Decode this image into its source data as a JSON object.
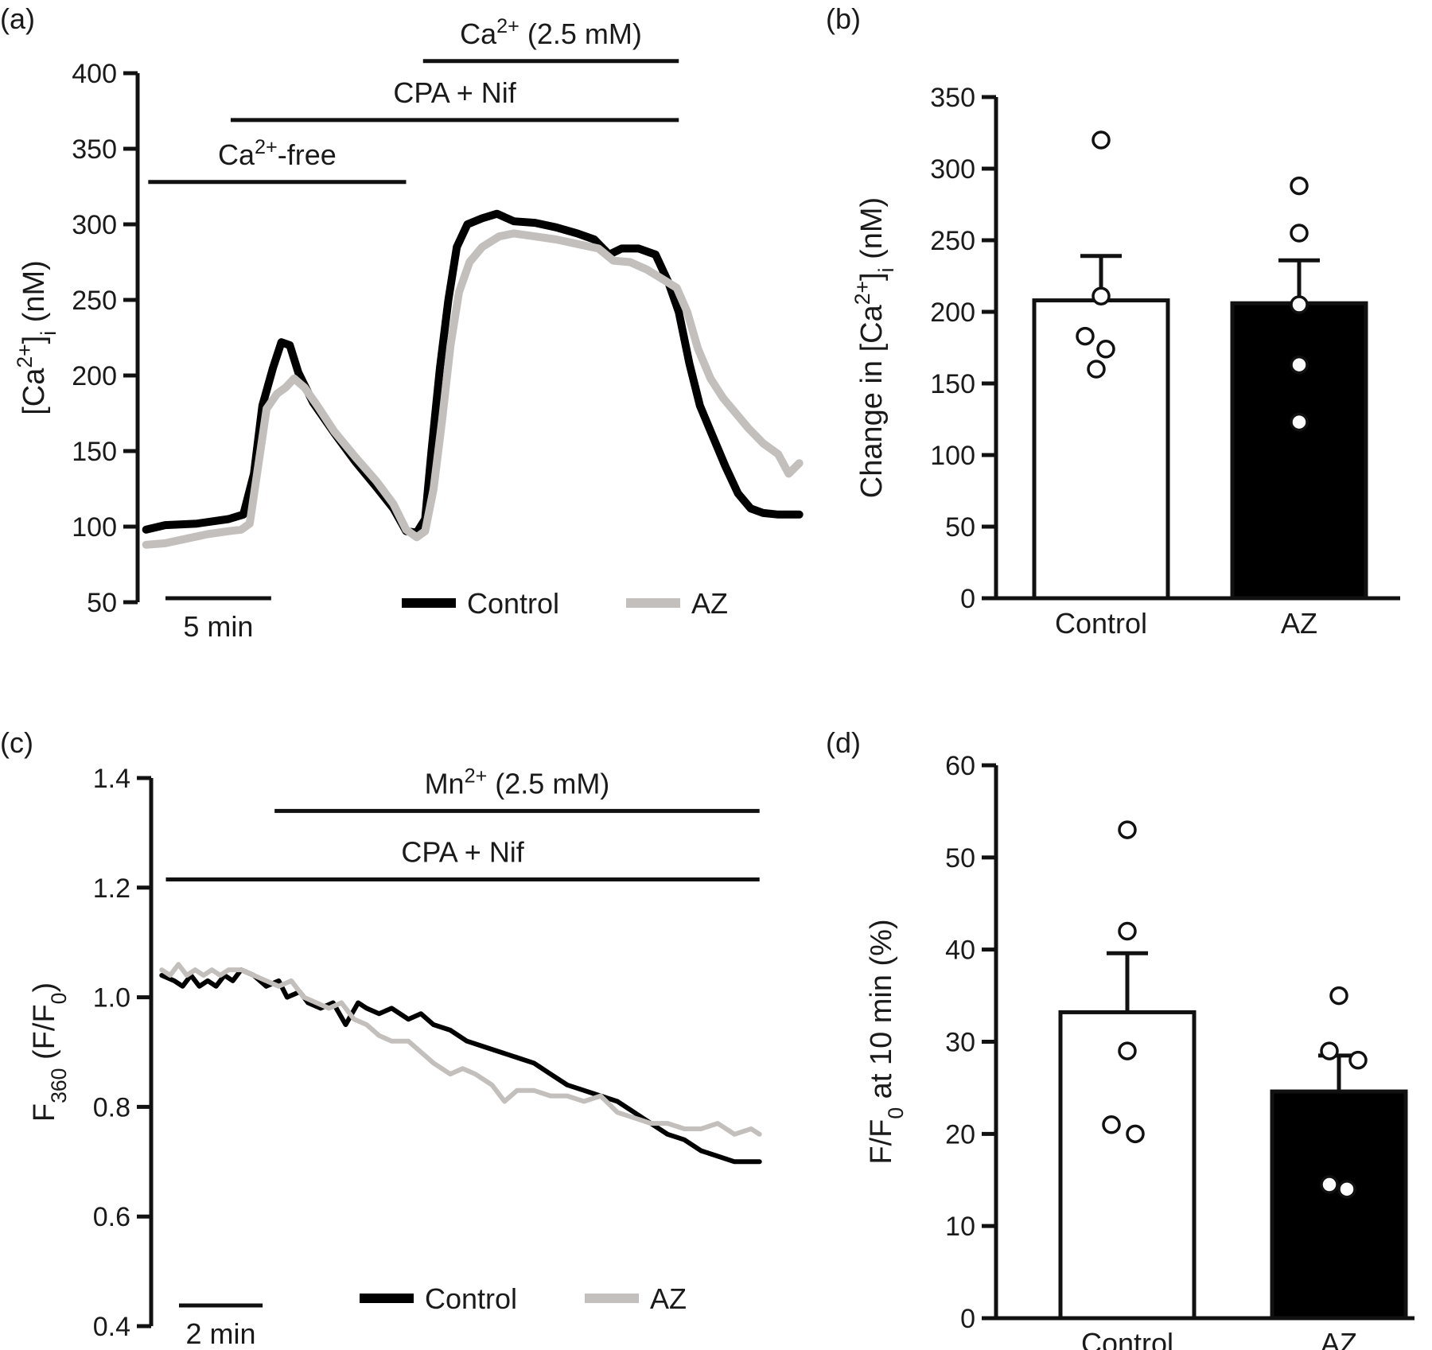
{
  "colors": {
    "control": "#000000",
    "az": "#c3bfbc",
    "axis": "#111111"
  },
  "chart_data": [
    {
      "id": "a",
      "panel_label": "(a)",
      "type": "line",
      "ylabel": "[Ca2+]i (nM)",
      "ylabel_parts": {
        "pre": "[Ca",
        "sup": "2+",
        "mid": "]",
        "sub": "i",
        "post": " (nM)"
      },
      "ylim": [
        50,
        400
      ],
      "yticks": [
        50,
        100,
        150,
        200,
        250,
        300,
        350,
        400
      ],
      "xlim": [
        0,
        31.2
      ],
      "x_units": "min",
      "scale_bar": {
        "length": 5,
        "label": "5 min"
      },
      "legend": [
        "Control",
        "AZ"
      ],
      "annotations": [
        {
          "label_parts": {
            "pre": "Ca",
            "sup": "2+",
            "post": "-free"
          },
          "x_start": 0.2,
          "x_end": 12.4,
          "y": 328
        },
        {
          "label": "CPA + Nif",
          "x_start": 4.1,
          "x_end": 25.3,
          "y": 369
        },
        {
          "label_parts": {
            "pre": "Ca",
            "sup": "2+",
            "post": "  (2.5 mM)"
          },
          "x_start": 13.2,
          "x_end": 25.3,
          "y": 408
        }
      ],
      "series": [
        {
          "name": "Control",
          "points": [
            [
              0.1,
              98
            ],
            [
              1,
              101
            ],
            [
              2.5,
              102
            ],
            [
              4,
              105
            ],
            [
              4.7,
              108
            ],
            [
              5.2,
              135
            ],
            [
              5.6,
              180
            ],
            [
              6.1,
              205
            ],
            [
              6.5,
              222
            ],
            [
              6.9,
              220
            ],
            [
              7.3,
              202
            ],
            [
              8,
              182
            ],
            [
              9,
              162
            ],
            [
              10,
              143
            ],
            [
              11,
              126
            ],
            [
              11.8,
              112
            ],
            [
              12.4,
              97
            ],
            [
              12.9,
              96
            ],
            [
              13.3,
              105
            ],
            [
              13.6,
              150
            ],
            [
              14,
              205
            ],
            [
              14.4,
              250
            ],
            [
              14.8,
              285
            ],
            [
              15.3,
              300
            ],
            [
              16,
              304
            ],
            [
              16.7,
              307
            ],
            [
              17.5,
              302
            ],
            [
              18.5,
              301
            ],
            [
              19.5,
              298
            ],
            [
              20.5,
              294
            ],
            [
              21.3,
              290
            ],
            [
              22,
              280
            ],
            [
              22.6,
              284
            ],
            [
              23.4,
              284
            ],
            [
              24.2,
              280
            ],
            [
              24.8,
              262
            ],
            [
              25.3,
              242
            ],
            [
              25.8,
              208
            ],
            [
              26.3,
              180
            ],
            [
              26.9,
              160
            ],
            [
              27.5,
              140
            ],
            [
              28.1,
              122
            ],
            [
              28.7,
              112
            ],
            [
              29.3,
              109
            ],
            [
              30,
              108
            ],
            [
              31,
              108
            ]
          ]
        },
        {
          "name": "AZ",
          "points": [
            [
              0.1,
              88
            ],
            [
              1,
              89
            ],
            [
              2,
              92
            ],
            [
              3,
              95
            ],
            [
              4,
              97
            ],
            [
              4.6,
              98
            ],
            [
              5,
              102
            ],
            [
              5.4,
              140
            ],
            [
              5.8,
              178
            ],
            [
              6.3,
              188
            ],
            [
              6.7,
              192
            ],
            [
              7.1,
              198
            ],
            [
              7.6,
              192
            ],
            [
              8.2,
              180
            ],
            [
              9,
              163
            ],
            [
              10,
              146
            ],
            [
              11,
              130
            ],
            [
              11.8,
              115
            ],
            [
              12.4,
              98
            ],
            [
              12.9,
              93
            ],
            [
              13.3,
              97
            ],
            [
              13.7,
              125
            ],
            [
              14.1,
              170
            ],
            [
              14.5,
              220
            ],
            [
              14.9,
              255
            ],
            [
              15.4,
              275
            ],
            [
              16,
              285
            ],
            [
              16.8,
              292
            ],
            [
              17.5,
              294
            ],
            [
              18.5,
              292
            ],
            [
              19.5,
              290
            ],
            [
              20.5,
              287
            ],
            [
              21.5,
              284
            ],
            [
              22.2,
              276
            ],
            [
              23,
              275
            ],
            [
              23.8,
              270
            ],
            [
              24.5,
              264
            ],
            [
              25.2,
              258
            ],
            [
              25.7,
              242
            ],
            [
              26.2,
              218
            ],
            [
              26.8,
              198
            ],
            [
              27.4,
              185
            ],
            [
              28,
              175
            ],
            [
              28.6,
              165
            ],
            [
              29.3,
              155
            ],
            [
              30,
              148
            ],
            [
              30.5,
              135
            ],
            [
              31,
              142
            ]
          ]
        }
      ]
    },
    {
      "id": "b",
      "panel_label": "(b)",
      "type": "bar",
      "ylabel": "Change in [Ca2+]i (nM)",
      "ylabel_parts": {
        "pre": "Change in [Ca",
        "sup": "2+",
        "mid": "]",
        "sub": "i",
        "post": " (nM)"
      },
      "ylim": [
        0,
        350
      ],
      "yticks": [
        0,
        50,
        100,
        150,
        200,
        250,
        300,
        350
      ],
      "categories": [
        "Control",
        "AZ"
      ],
      "values": [
        208,
        206
      ],
      "errors": [
        31,
        30
      ],
      "bar_fill": [
        "#ffffff",
        "#000000"
      ],
      "points": [
        [
          320,
          211,
          183,
          174,
          160
        ],
        [
          288,
          255,
          205,
          163,
          123
        ]
      ]
    },
    {
      "id": "c",
      "panel_label": "(c)",
      "type": "line",
      "ylabel": "F360 (F/F0)",
      "ylabel_parts": {
        "pre": "F",
        "sub1": "360",
        "mid": " (F/F",
        "sub2": "0",
        "post": ")"
      },
      "ylim": [
        0.4,
        1.4
      ],
      "yticks": [
        0.4,
        0.6,
        0.8,
        1.0,
        1.2,
        1.4
      ],
      "ytick_labels": [
        "0.4",
        "0.6",
        "0.8",
        "1.0",
        "1.2",
        "1.4"
      ],
      "xlim": [
        0,
        14.5
      ],
      "x_units": "min",
      "scale_bar": {
        "length": 2,
        "label": "2 min"
      },
      "legend": [
        "Control",
        "AZ"
      ],
      "annotations": [
        {
          "label": "CPA + Nif",
          "x_start": 0.2,
          "x_end": 14.4,
          "y": 1.215
        },
        {
          "label_parts": {
            "pre": "Mn",
            "sup": "2+",
            "post": " (2.5 mM)"
          },
          "x_start": 2.8,
          "x_end": 14.4,
          "y": 1.34
        }
      ],
      "series": [
        {
          "name": "Control",
          "points": [
            [
              0.1,
              1.04
            ],
            [
              0.4,
              1.03
            ],
            [
              0.6,
              1.02
            ],
            [
              0.8,
              1.04
            ],
            [
              1.0,
              1.02
            ],
            [
              1.2,
              1.03
            ],
            [
              1.4,
              1.02
            ],
            [
              1.6,
              1.04
            ],
            [
              1.8,
              1.03
            ],
            [
              2.0,
              1.05
            ],
            [
              2.3,
              1.04
            ],
            [
              2.6,
              1.02
            ],
            [
              2.9,
              1.03
            ],
            [
              3.1,
              1.0
            ],
            [
              3.4,
              1.01
            ],
            [
              3.6,
              0.99
            ],
            [
              3.9,
              0.98
            ],
            [
              4.2,
              0.99
            ],
            [
              4.5,
              0.95
            ],
            [
              4.8,
              0.99
            ],
            [
              5.0,
              0.98
            ],
            [
              5.3,
              0.97
            ],
            [
              5.6,
              0.98
            ],
            [
              6.0,
              0.96
            ],
            [
              6.3,
              0.97
            ],
            [
              6.6,
              0.95
            ],
            [
              7.0,
              0.94
            ],
            [
              7.4,
              0.92
            ],
            [
              7.8,
              0.91
            ],
            [
              8.2,
              0.9
            ],
            [
              8.6,
              0.89
            ],
            [
              9.0,
              0.88
            ],
            [
              9.4,
              0.86
            ],
            [
              9.8,
              0.84
            ],
            [
              10.2,
              0.83
            ],
            [
              10.6,
              0.82
            ],
            [
              11.0,
              0.81
            ],
            [
              11.4,
              0.79
            ],
            [
              11.8,
              0.77
            ],
            [
              12.2,
              0.75
            ],
            [
              12.6,
              0.74
            ],
            [
              13.0,
              0.72
            ],
            [
              13.4,
              0.71
            ],
            [
              13.8,
              0.7
            ],
            [
              14.4,
              0.7
            ]
          ]
        },
        {
          "name": "AZ",
          "points": [
            [
              0.1,
              1.05
            ],
            [
              0.3,
              1.04
            ],
            [
              0.5,
              1.06
            ],
            [
              0.7,
              1.04
            ],
            [
              0.9,
              1.05
            ],
            [
              1.1,
              1.04
            ],
            [
              1.3,
              1.05
            ],
            [
              1.5,
              1.04
            ],
            [
              1.7,
              1.05
            ],
            [
              2.0,
              1.05
            ],
            [
              2.3,
              1.04
            ],
            [
              2.6,
              1.03
            ],
            [
              2.9,
              1.02
            ],
            [
              3.2,
              1.03
            ],
            [
              3.5,
              1.0
            ],
            [
              3.8,
              0.99
            ],
            [
              4.1,
              0.98
            ],
            [
              4.4,
              0.99
            ],
            [
              4.7,
              0.96
            ],
            [
              5.0,
              0.95
            ],
            [
              5.3,
              0.93
            ],
            [
              5.6,
              0.92
            ],
            [
              6.0,
              0.92
            ],
            [
              6.3,
              0.9
            ],
            [
              6.6,
              0.88
            ],
            [
              7.0,
              0.86
            ],
            [
              7.3,
              0.87
            ],
            [
              7.6,
              0.86
            ],
            [
              8.0,
              0.84
            ],
            [
              8.3,
              0.81
            ],
            [
              8.6,
              0.83
            ],
            [
              9.0,
              0.83
            ],
            [
              9.4,
              0.82
            ],
            [
              9.8,
              0.82
            ],
            [
              10.2,
              0.81
            ],
            [
              10.6,
              0.82
            ],
            [
              11.0,
              0.79
            ],
            [
              11.4,
              0.78
            ],
            [
              11.8,
              0.77
            ],
            [
              12.2,
              0.77
            ],
            [
              12.6,
              0.76
            ],
            [
              13.0,
              0.76
            ],
            [
              13.4,
              0.77
            ],
            [
              13.8,
              0.75
            ],
            [
              14.2,
              0.76
            ],
            [
              14.4,
              0.75
            ]
          ]
        }
      ]
    },
    {
      "id": "d",
      "panel_label": "(d)",
      "type": "bar",
      "ylabel": "F/F0 at 10 min (%)",
      "ylabel_parts": {
        "pre": "F/F",
        "sub": "0",
        "post": " at 10 min (%)"
      },
      "ylim": [
        0,
        60
      ],
      "yticks": [
        0,
        10,
        20,
        30,
        40,
        50,
        60
      ],
      "categories": [
        "Control",
        "AZ"
      ],
      "values": [
        33.2,
        24.6
      ],
      "errors": [
        6.4,
        3.9
      ],
      "bar_fill": [
        "#ffffff",
        "#000000"
      ],
      "points": [
        [
          53,
          42,
          29,
          21,
          20
        ],
        [
          35,
          29,
          28,
          14.5,
          14
        ]
      ]
    }
  ]
}
